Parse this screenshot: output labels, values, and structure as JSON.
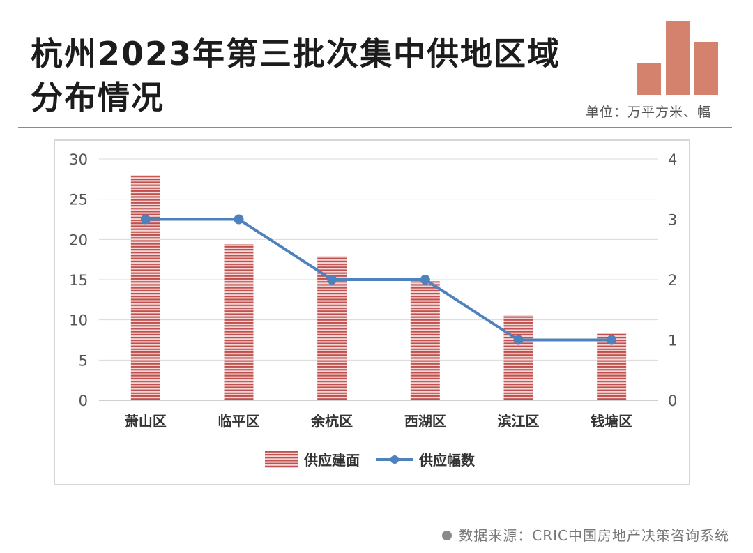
{
  "header": {
    "title_line1": "杭州2023年第三批次集中供地区域",
    "title_line2": "分布情况",
    "unit": "单位：万平方米、幅"
  },
  "logo_icon": "bar-chart-logo-icon",
  "colors": {
    "bar": "#c0504d",
    "line": "#4f81bd",
    "accent": "#d4826d"
  },
  "chart_data": {
    "type": "bar",
    "categories": [
      "萧山区",
      "临平区",
      "余杭区",
      "西湖区",
      "滨江区",
      "钱塘区"
    ],
    "series": [
      {
        "name": "供应建面",
        "type": "bar",
        "axis": "left",
        "values": [
          28.0,
          19.4,
          17.9,
          14.8,
          10.6,
          8.3
        ]
      },
      {
        "name": "供应幅数",
        "type": "line",
        "axis": "right",
        "values": [
          3,
          3,
          2,
          2,
          1,
          1
        ]
      }
    ],
    "ylim_left": [
      0,
      30
    ],
    "yticks_left": [
      "0",
      "5",
      "10",
      "15",
      "20",
      "25",
      "30"
    ],
    "ylim_right": [
      0,
      4
    ],
    "yticks_right": [
      "0",
      "1",
      "2",
      "3",
      "4"
    ],
    "grid": true,
    "legend_position": "bottom"
  },
  "footer": {
    "source": "数据来源：CRIC中国房地产决策咨询系统"
  }
}
